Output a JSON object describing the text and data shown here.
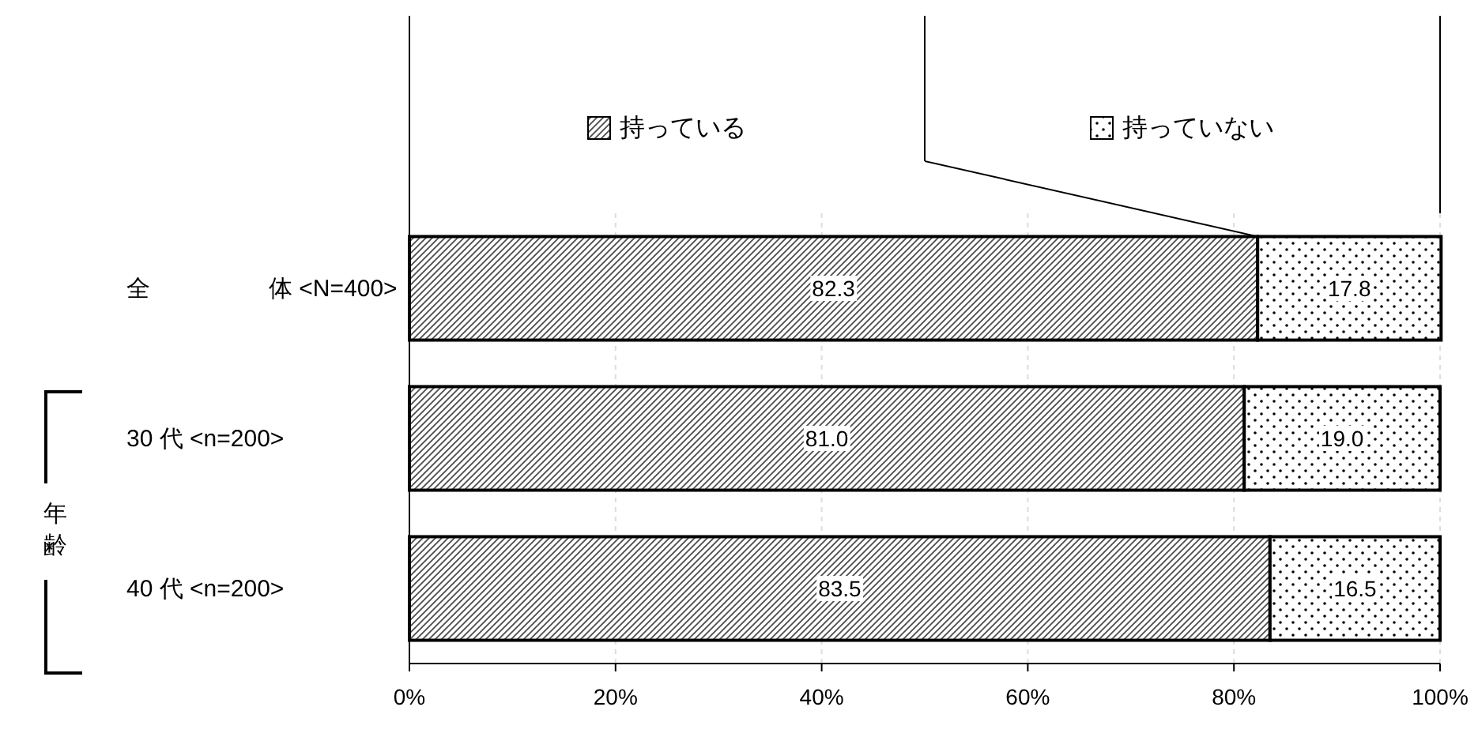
{
  "chart_data": {
    "type": "bar",
    "orientation": "horizontal",
    "stacked": true,
    "categories": [
      "全　　　　　体 <N=400>",
      "30 代 <n=200>",
      "40 代 <n=200>"
    ],
    "series": [
      {
        "name": "持っている",
        "color": "#000000",
        "values": [
          82.3,
          81.0,
          83.5
        ]
      },
      {
        "name": "持っていない",
        "color": "#000000",
        "values": [
          17.8,
          19.0,
          16.5
        ]
      }
    ],
    "value_labels": [
      [
        "82.3",
        "81.0",
        "83.5"
      ],
      [
        "17.8",
        "19.0",
        "16.5"
      ]
    ],
    "annotations": [
      "年齢"
    ],
    "xlim": [
      0,
      100
    ],
    "xticks": [
      {
        "value": 0,
        "label": "0%"
      },
      {
        "value": 20,
        "label": "20%"
      },
      {
        "value": 40,
        "label": "40%"
      },
      {
        "value": 60,
        "label": "60%"
      },
      {
        "value": 80,
        "label": "80%"
      },
      {
        "value": 100,
        "label": "100%"
      }
    ],
    "grid": "x",
    "legend": "top"
  }
}
